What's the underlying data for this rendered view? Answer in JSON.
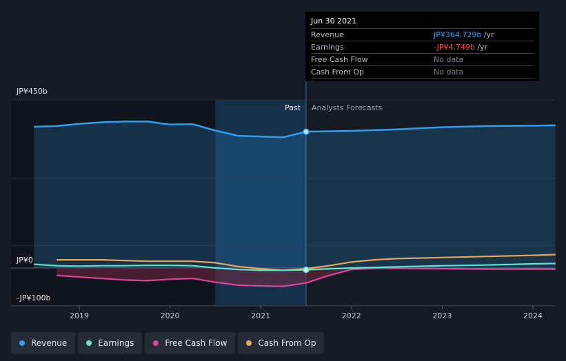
{
  "tooltip": {
    "date": "Jun 30 2021",
    "rows": [
      {
        "label": "Revenue",
        "value": "JP¥364.729b",
        "unit": " /yr",
        "color": "#2f9ff0"
      },
      {
        "label": "Earnings",
        "value": "-JP¥4.749b",
        "unit": " /yr",
        "color": "#ff4a4a"
      },
      {
        "label": "Free Cash Flow",
        "value": "No data",
        "unit": "",
        "color": "#7d848e"
      },
      {
        "label": "Cash From Op",
        "value": "No data",
        "unit": "",
        "color": "#7d848e"
      }
    ]
  },
  "chart_data": {
    "type": "line",
    "x_ticks": [
      "2019",
      "2020",
      "2021",
      "2022",
      "2023",
      "2024"
    ],
    "y_tick_labels": [
      "JP¥450b",
      "JP¥0",
      "-JP¥100b"
    ],
    "ylim": [
      -100,
      450
    ],
    "region_labels": {
      "past": "Past",
      "forecast": "Analysts Forecasts"
    },
    "divider_x": 2021.5,
    "series": [
      {
        "name": "Revenue",
        "color": "#2f9ff0",
        "points": [
          [
            2018.5,
            378
          ],
          [
            2018.75,
            380
          ],
          [
            2019.0,
            386
          ],
          [
            2019.25,
            390
          ],
          [
            2019.5,
            392
          ],
          [
            2019.75,
            392
          ],
          [
            2020.0,
            384
          ],
          [
            2020.25,
            385
          ],
          [
            2020.5,
            368
          ],
          [
            2020.75,
            354
          ],
          [
            2021.0,
            352
          ],
          [
            2021.25,
            350
          ],
          [
            2021.5,
            365
          ],
          [
            2022.0,
            367
          ],
          [
            2022.5,
            371
          ],
          [
            2023.0,
            377
          ],
          [
            2023.5,
            380
          ],
          [
            2024.0,
            381
          ],
          [
            2024.25,
            382
          ]
        ]
      },
      {
        "name": "Earnings",
        "color": "#5ee6cf",
        "points": [
          [
            2018.5,
            10
          ],
          [
            2018.75,
            6
          ],
          [
            2019.0,
            5
          ],
          [
            2019.25,
            6
          ],
          [
            2019.5,
            6
          ],
          [
            2019.75,
            7
          ],
          [
            2020.0,
            7
          ],
          [
            2020.25,
            6
          ],
          [
            2020.5,
            0
          ],
          [
            2020.75,
            -4
          ],
          [
            2021.0,
            -6
          ],
          [
            2021.25,
            -6
          ],
          [
            2021.5,
            -5
          ],
          [
            2022.0,
            0
          ],
          [
            2022.5,
            3
          ],
          [
            2023.0,
            6
          ],
          [
            2023.5,
            8
          ],
          [
            2024.0,
            11
          ],
          [
            2024.25,
            12
          ]
        ]
      },
      {
        "name": "Free Cash Flow",
        "color": "#d8469a",
        "points": [
          [
            2018.75,
            -20
          ],
          [
            2019.0,
            -24
          ],
          [
            2019.25,
            -28
          ],
          [
            2019.5,
            -32
          ],
          [
            2019.75,
            -34
          ],
          [
            2020.0,
            -30
          ],
          [
            2020.25,
            -28
          ],
          [
            2020.5,
            -38
          ],
          [
            2020.75,
            -46
          ],
          [
            2021.0,
            -48
          ],
          [
            2021.25,
            -49
          ],
          [
            2021.5,
            -40
          ],
          [
            2021.75,
            -20
          ],
          [
            2022.0,
            -4
          ],
          [
            2022.25,
            -1
          ],
          [
            2022.5,
            -1
          ],
          [
            2023.0,
            -2
          ],
          [
            2023.5,
            -3
          ],
          [
            2024.0,
            -3
          ],
          [
            2024.25,
            -3
          ]
        ]
      },
      {
        "name": "Cash From Op",
        "color": "#e7a85c",
        "points": [
          [
            2018.75,
            22
          ],
          [
            2019.0,
            22
          ],
          [
            2019.25,
            22
          ],
          [
            2019.5,
            20
          ],
          [
            2019.75,
            18
          ],
          [
            2020.0,
            18
          ],
          [
            2020.25,
            18
          ],
          [
            2020.5,
            14
          ],
          [
            2020.75,
            4
          ],
          [
            2021.0,
            -2
          ],
          [
            2021.25,
            -6
          ],
          [
            2021.5,
            -2
          ],
          [
            2021.75,
            6
          ],
          [
            2022.0,
            16
          ],
          [
            2022.25,
            22
          ],
          [
            2022.5,
            25
          ],
          [
            2023.0,
            28
          ],
          [
            2023.5,
            31
          ],
          [
            2024.0,
            34
          ],
          [
            2024.25,
            36
          ]
        ]
      }
    ],
    "highlight_x": 2021.5,
    "highlight_values": {
      "Revenue": 364.729,
      "Earnings": -4.749
    },
    "legend": [
      "Revenue",
      "Earnings",
      "Free Cash Flow",
      "Cash From Op"
    ]
  }
}
